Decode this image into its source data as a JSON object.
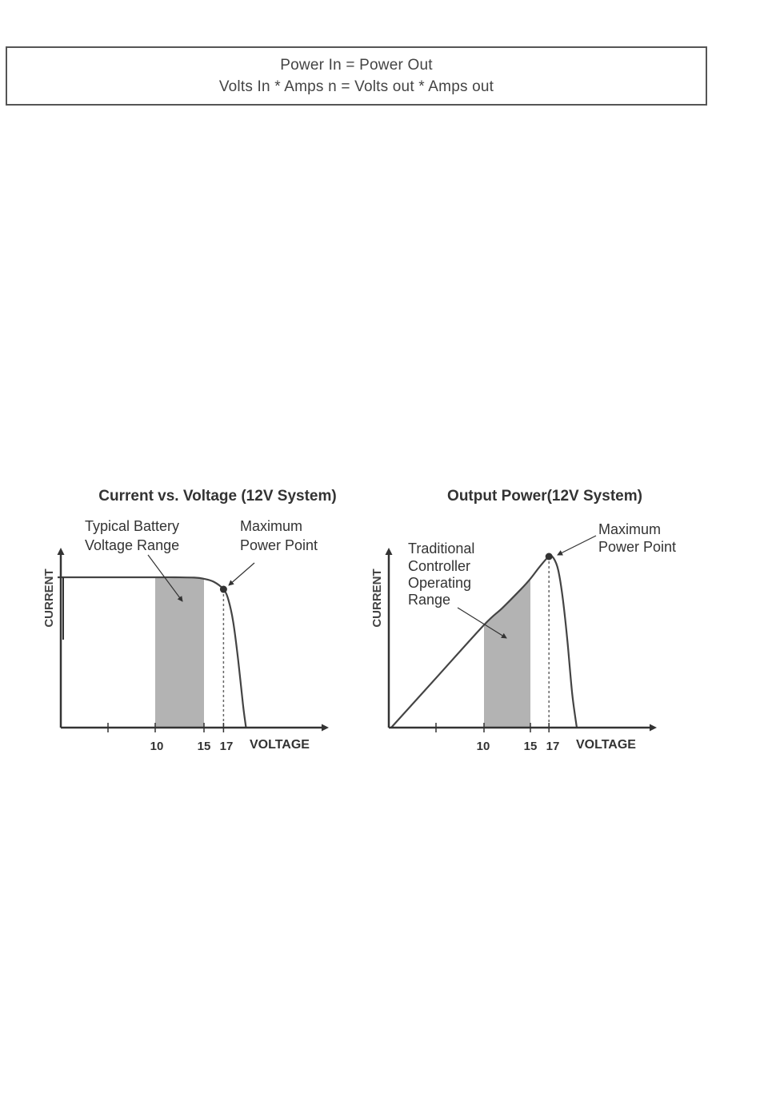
{
  "formula": {
    "line1": "Power In = Power Out",
    "line2": "Volts  In * Amps  n = Volts out * Amps out"
  },
  "chart_data": [
    {
      "type": "line",
      "title": "Current vs. Voltage (12V System)",
      "xlabel": "VOLTAGE",
      "ylabel": "CURRENT",
      "x_ticks": [
        "10",
        "15",
        "17"
      ],
      "shaded_region": {
        "x": [
          10,
          15
        ],
        "label": [
          "Typical Battery",
          "Voltage Range"
        ]
      },
      "annotation": {
        "x": 17,
        "label": [
          "Maximum",
          "Power Point"
        ]
      },
      "series": [
        {
          "x": [
            0,
            5,
            10,
            12,
            14,
            15,
            16,
            17,
            17.5,
            18,
            18.5,
            19,
            19.3
          ],
          "y": [
            1.0,
            1.0,
            1.0,
            1.0,
            0.998,
            0.99,
            0.97,
            0.92,
            0.85,
            0.7,
            0.45,
            0.15,
            0
          ]
        }
      ]
    },
    {
      "type": "line",
      "title": "Output Power(12V System)",
      "xlabel": "VOLTAGE",
      "ylabel": "CURRENT",
      "x_ticks": [
        "10",
        "15",
        "17"
      ],
      "shaded_region": {
        "x": [
          10,
          15
        ],
        "label": [
          "Traditional",
          "Controller",
          "Operating",
          "Range"
        ]
      },
      "annotation": {
        "x": 17,
        "label": [
          "Maximum",
          "Power Point"
        ]
      },
      "series": [
        {
          "x": [
            0,
            5,
            10,
            12,
            14,
            15,
            16,
            17,
            17.5,
            18,
            18.5,
            19,
            19.5,
            20
          ],
          "y": [
            0,
            0.3,
            0.6,
            0.7,
            0.81,
            0.87,
            0.94,
            1.0,
            0.99,
            0.92,
            0.75,
            0.5,
            0.2,
            0
          ]
        }
      ]
    }
  ]
}
